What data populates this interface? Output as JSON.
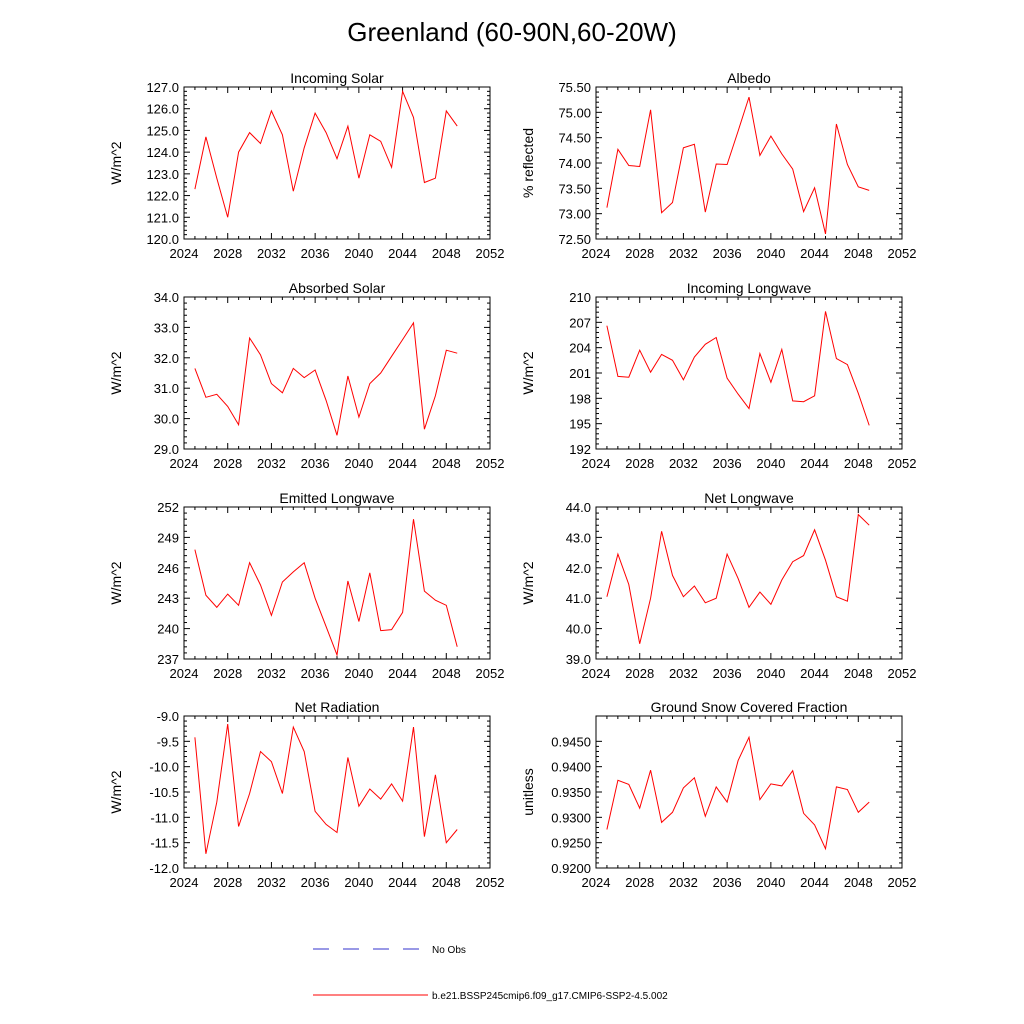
{
  "figure": {
    "title": "Greenland (60-90N,60-20W)",
    "line_color": "#ff0000",
    "obs_color": "#3333cc"
  },
  "legend": {
    "obs_label": "No Obs",
    "model_label": "b.e21.BSSP245cmip6.f09_g17.CMIP6-SSP2-4.5.002"
  },
  "chart_data": [
    {
      "type": "line",
      "title": "Incoming Solar",
      "xlabel": "",
      "ylabel": "W/m^2",
      "xlim": [
        2024,
        2052
      ],
      "ylim": [
        120.0,
        127.0
      ],
      "xticks": [
        2024,
        2028,
        2032,
        2036,
        2040,
        2044,
        2048,
        2052
      ],
      "yticks": [
        "120.0",
        "121.0",
        "122.0",
        "123.0",
        "124.0",
        "125.0",
        "126.0",
        "127.0"
      ],
      "x": [
        2025,
        2026,
        2027,
        2028,
        2029,
        2030,
        2031,
        2032,
        2033,
        2034,
        2035,
        2036,
        2037,
        2038,
        2039,
        2040,
        2041,
        2042,
        2043,
        2044,
        2045,
        2046,
        2047,
        2048,
        2049
      ],
      "values": [
        122.3,
        124.7,
        122.8,
        121.0,
        124.0,
        124.9,
        124.4,
        125.9,
        124.8,
        122.2,
        124.2,
        125.8,
        124.9,
        123.7,
        125.2,
        122.8,
        124.8,
        124.5,
        123.3,
        126.8,
        125.6,
        122.6,
        122.8,
        125.9,
        125.2
      ]
    },
    {
      "type": "line",
      "title": "Albedo",
      "xlabel": "",
      "ylabel": "% reflected",
      "xlim": [
        2024,
        2052
      ],
      "ylim": [
        72.5,
        75.5
      ],
      "xticks": [
        2024,
        2028,
        2032,
        2036,
        2040,
        2044,
        2048,
        2052
      ],
      "yticks": [
        "72.50",
        "73.00",
        "73.50",
        "74.00",
        "74.50",
        "75.00",
        "75.50"
      ],
      "x": [
        2025,
        2026,
        2027,
        2028,
        2029,
        2030,
        2031,
        2032,
        2033,
        2034,
        2035,
        2036,
        2037,
        2038,
        2039,
        2040,
        2041,
        2042,
        2043,
        2044,
        2045,
        2046,
        2047,
        2048,
        2049
      ],
      "values": [
        73.12,
        74.27,
        73.95,
        73.93,
        75.05,
        73.02,
        73.22,
        74.3,
        74.37,
        73.03,
        73.98,
        73.97,
        74.63,
        75.3,
        74.15,
        74.53,
        74.18,
        73.88,
        73.04,
        73.51,
        72.6,
        74.77,
        73.97,
        73.53,
        73.46
      ]
    },
    {
      "type": "line",
      "title": "Absorbed Solar",
      "xlabel": "",
      "ylabel": "W/m^2",
      "xlim": [
        2024,
        2052
      ],
      "ylim": [
        29.0,
        34.0
      ],
      "xticks": [
        2024,
        2028,
        2032,
        2036,
        2040,
        2044,
        2048,
        2052
      ],
      "yticks": [
        "29.0",
        "30.0",
        "31.0",
        "32.0",
        "33.0",
        "34.0"
      ],
      "x": [
        2025,
        2026,
        2027,
        2028,
        2029,
        2030,
        2031,
        2032,
        2033,
        2034,
        2035,
        2036,
        2037,
        2038,
        2039,
        2040,
        2041,
        2042,
        2043,
        2044,
        2045,
        2046,
        2047,
        2048,
        2049
      ],
      "values": [
        31.65,
        30.7,
        30.8,
        30.4,
        29.8,
        32.65,
        32.1,
        31.15,
        30.85,
        31.65,
        31.35,
        31.6,
        30.6,
        29.45,
        31.4,
        30.05,
        31.15,
        31.5,
        32.05,
        32.6,
        33.15,
        29.65,
        30.75,
        32.25,
        32.15
      ]
    },
    {
      "type": "line",
      "title": "Incoming Longwave",
      "xlabel": "",
      "ylabel": "W/m^2",
      "xlim": [
        2024,
        2052
      ],
      "ylim": [
        192,
        210
      ],
      "xticks": [
        2024,
        2028,
        2032,
        2036,
        2040,
        2044,
        2048,
        2052
      ],
      "yticks": [
        "192",
        "195",
        "198",
        "201",
        "204",
        "207",
        "210"
      ],
      "x": [
        2025,
        2026,
        2027,
        2028,
        2029,
        2030,
        2031,
        2032,
        2033,
        2034,
        2035,
        2036,
        2037,
        2038,
        2039,
        2040,
        2041,
        2042,
        2043,
        2044,
        2045,
        2046,
        2047,
        2048,
        2049
      ],
      "values": [
        206.6,
        200.6,
        200.5,
        203.7,
        201.1,
        203.2,
        202.5,
        200.2,
        202.9,
        204.4,
        205.2,
        200.4,
        198.5,
        196.8,
        203.3,
        199.9,
        203.8,
        197.7,
        197.6,
        198.3,
        208.3,
        202.7,
        202.0,
        198.6,
        194.8
      ]
    },
    {
      "type": "line",
      "title": "Emitted Longwave",
      "xlabel": "",
      "ylabel": "W/m^2",
      "xlim": [
        2024,
        2052
      ],
      "ylim": [
        237,
        252
      ],
      "xticks": [
        2024,
        2028,
        2032,
        2036,
        2040,
        2044,
        2048,
        2052
      ],
      "yticks": [
        "237",
        "240",
        "243",
        "246",
        "249",
        "252"
      ],
      "x": [
        2025,
        2026,
        2027,
        2028,
        2029,
        2030,
        2031,
        2032,
        2033,
        2034,
        2035,
        2036,
        2037,
        2038,
        2039,
        2040,
        2041,
        2042,
        2043,
        2044,
        2045,
        2046,
        2047,
        2048,
        2049
      ],
      "values": [
        247.8,
        243.3,
        242.1,
        243.4,
        242.3,
        246.5,
        244.3,
        241.3,
        244.6,
        245.6,
        246.5,
        243.0,
        240.2,
        237.4,
        244.7,
        240.7,
        245.5,
        239.8,
        239.9,
        241.6,
        250.8,
        243.7,
        242.8,
        242.3,
        238.2
      ]
    },
    {
      "type": "line",
      "title": "Net Longwave",
      "xlabel": "",
      "ylabel": "W/m^2",
      "xlim": [
        2024,
        2052
      ],
      "ylim": [
        39.0,
        44.0
      ],
      "xticks": [
        2024,
        2028,
        2032,
        2036,
        2040,
        2044,
        2048,
        2052
      ],
      "yticks": [
        "39.0",
        "40.0",
        "41.0",
        "42.0",
        "43.0",
        "44.0"
      ],
      "x": [
        2025,
        2026,
        2027,
        2028,
        2029,
        2030,
        2031,
        2032,
        2033,
        2034,
        2035,
        2036,
        2037,
        2038,
        2039,
        2040,
        2041,
        2042,
        2043,
        2044,
        2045,
        2046,
        2047,
        2048,
        2049
      ],
      "values": [
        41.05,
        42.45,
        41.45,
        39.5,
        41.0,
        43.2,
        41.75,
        41.05,
        41.4,
        40.85,
        41.0,
        42.45,
        41.65,
        40.7,
        41.2,
        40.8,
        41.6,
        42.2,
        42.4,
        43.25,
        42.25,
        41.05,
        40.9,
        43.75,
        43.4
      ]
    },
    {
      "type": "line",
      "title": "Net Radiation",
      "xlabel": "",
      "ylabel": "W/m^2",
      "xlim": [
        2024,
        2052
      ],
      "ylim": [
        -12.0,
        -9.0
      ],
      "xticks": [
        2024,
        2028,
        2032,
        2036,
        2040,
        2044,
        2048,
        2052
      ],
      "yticks": [
        "-12.0",
        "-11.5",
        "-11.0",
        "-10.5",
        "-10.0",
        "-9.5",
        "-9.0"
      ],
      "x": [
        2025,
        2026,
        2027,
        2028,
        2029,
        2030,
        2031,
        2032,
        2033,
        2034,
        2035,
        2036,
        2037,
        2038,
        2039,
        2040,
        2041,
        2042,
        2043,
        2044,
        2045,
        2046,
        2047,
        2048,
        2049
      ],
      "values": [
        -9.42,
        -11.72,
        -10.7,
        -9.16,
        -11.18,
        -10.53,
        -9.7,
        -9.9,
        -10.53,
        -9.22,
        -9.7,
        -10.88,
        -11.14,
        -11.3,
        -9.82,
        -10.78,
        -10.44,
        -10.64,
        -10.34,
        -10.68,
        -9.22,
        -11.38,
        -10.16,
        -11.5,
        -11.24
      ]
    },
    {
      "type": "line",
      "title": "Ground Snow Covered Fraction",
      "xlabel": "",
      "ylabel": "unitless",
      "xlim": [
        2024,
        2052
      ],
      "ylim": [
        0.92,
        0.95
      ],
      "xticks": [
        2024,
        2028,
        2032,
        2036,
        2040,
        2044,
        2048,
        2052
      ],
      "yticks": [
        "0.9200",
        "0.9250",
        "0.9300",
        "0.9350",
        "0.9400",
        "0.9450"
      ],
      "x": [
        2025,
        2026,
        2027,
        2028,
        2029,
        2030,
        2031,
        2032,
        2033,
        2034,
        2035,
        2036,
        2037,
        2038,
        2039,
        2040,
        2041,
        2042,
        2043,
        2044,
        2045,
        2046,
        2047,
        2048,
        2049
      ],
      "values": [
        0.9276,
        0.9373,
        0.9365,
        0.9318,
        0.9393,
        0.929,
        0.931,
        0.9358,
        0.9378,
        0.9302,
        0.936,
        0.933,
        0.9412,
        0.9458,
        0.9335,
        0.9366,
        0.9362,
        0.9392,
        0.9308,
        0.9285,
        0.9238,
        0.936,
        0.9355,
        0.931,
        0.933
      ]
    }
  ]
}
